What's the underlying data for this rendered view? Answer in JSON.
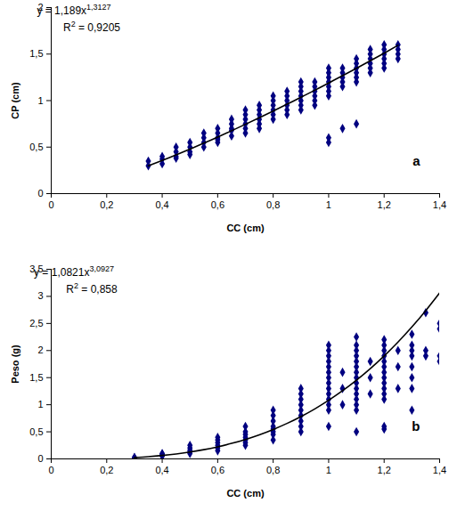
{
  "chart_data": [
    {
      "type": "scatter",
      "x_label": "CC (cm)",
      "y_label": "CP (cm)",
      "panel_label": "a",
      "annotations": [
        {
          "text": "y = 1,189x",
          "superscript": "1,3127",
          "text_after": ""
        },
        {
          "text": "R",
          "superscript": "2",
          "text_after": " = 0,9205"
        }
      ],
      "xlim": [
        0,
        1.4
      ],
      "xticks": [
        0,
        {
          "value": 0.2,
          "label": "0,2"
        },
        {
          "value": 0.4,
          "label": "0,4"
        },
        {
          "value": 0.6,
          "label": "0,6"
        },
        {
          "value": 0.8,
          "label": "0,8"
        },
        1,
        {
          "value": 1.2,
          "label": "1,2"
        },
        {
          "value": 1.4,
          "label": "1,4"
        }
      ],
      "ylim": [
        0,
        2
      ],
      "yticks": [
        0,
        {
          "value": 0.5,
          "label": "0,5"
        },
        1,
        {
          "value": 1.5,
          "label": "1,5"
        },
        2
      ],
      "grid": false,
      "series": [
        {
          "type": "scatter",
          "marker": "diamond",
          "color": "#000080",
          "points": [
            [
              0.35,
              0.35
            ],
            [
              0.35,
              0.3
            ],
            [
              0.4,
              0.37
            ],
            [
              0.4,
              0.4
            ],
            [
              0.4,
              0.32
            ],
            [
              0.45,
              0.4
            ],
            [
              0.45,
              0.45
            ],
            [
              0.45,
              0.38
            ],
            [
              0.45,
              0.5
            ],
            [
              0.5,
              0.45
            ],
            [
              0.5,
              0.5
            ],
            [
              0.5,
              0.55
            ],
            [
              0.5,
              0.42
            ],
            [
              0.55,
              0.6
            ],
            [
              0.55,
              0.55
            ],
            [
              0.55,
              0.5
            ],
            [
              0.55,
              0.65
            ],
            [
              0.6,
              0.6
            ],
            [
              0.6,
              0.65
            ],
            [
              0.6,
              0.55
            ],
            [
              0.6,
              0.7
            ],
            [
              0.6,
              0.58
            ],
            [
              0.65,
              0.7
            ],
            [
              0.65,
              0.75
            ],
            [
              0.65,
              0.62
            ],
            [
              0.65,
              0.68
            ],
            [
              0.65,
              0.8
            ],
            [
              0.7,
              0.75
            ],
            [
              0.7,
              0.8
            ],
            [
              0.7,
              0.7
            ],
            [
              0.7,
              0.65
            ],
            [
              0.7,
              0.85
            ],
            [
              0.7,
              0.9
            ],
            [
              0.75,
              0.8
            ],
            [
              0.75,
              0.85
            ],
            [
              0.75,
              0.9
            ],
            [
              0.75,
              0.75
            ],
            [
              0.75,
              0.95
            ],
            [
              0.75,
              0.7
            ],
            [
              0.8,
              0.9
            ],
            [
              0.8,
              0.85
            ],
            [
              0.8,
              0.95
            ],
            [
              0.8,
              1.0
            ],
            [
              0.8,
              0.8
            ],
            [
              0.8,
              1.05
            ],
            [
              0.85,
              0.9
            ],
            [
              0.85,
              0.95
            ],
            [
              0.85,
              1.0
            ],
            [
              0.85,
              1.05
            ],
            [
              0.85,
              0.85
            ],
            [
              0.85,
              1.1
            ],
            [
              0.9,
              1.0
            ],
            [
              0.9,
              1.05
            ],
            [
              0.9,
              1.1
            ],
            [
              0.9,
              0.95
            ],
            [
              0.9,
              1.15
            ],
            [
              0.9,
              0.9
            ],
            [
              0.9,
              1.2
            ],
            [
              0.95,
              1.05
            ],
            [
              0.95,
              1.1
            ],
            [
              0.95,
              1.15
            ],
            [
              0.95,
              1.2
            ],
            [
              0.95,
              1.0
            ],
            [
              0.95,
              0.95
            ],
            [
              1.0,
              1.1
            ],
            [
              1.0,
              1.2
            ],
            [
              1.0,
              1.25
            ],
            [
              1.0,
              1.3
            ],
            [
              1.0,
              1.35
            ],
            [
              1.0,
              1.15
            ],
            [
              1.0,
              1.05
            ],
            [
              1.0,
              0.55
            ],
            [
              1.0,
              0.6
            ],
            [
              1.05,
              1.2
            ],
            [
              1.05,
              1.25
            ],
            [
              1.05,
              1.3
            ],
            [
              1.05,
              1.35
            ],
            [
              1.05,
              1.15
            ],
            [
              1.05,
              0.7
            ],
            [
              1.1,
              1.25
            ],
            [
              1.1,
              1.3
            ],
            [
              1.1,
              1.35
            ],
            [
              1.1,
              1.4
            ],
            [
              1.1,
              1.45
            ],
            [
              1.1,
              1.2
            ],
            [
              1.1,
              0.75
            ],
            [
              1.15,
              1.35
            ],
            [
              1.15,
              1.4
            ],
            [
              1.15,
              1.45
            ],
            [
              1.15,
              1.5
            ],
            [
              1.15,
              1.55
            ],
            [
              1.15,
              1.3
            ],
            [
              1.2,
              1.4
            ],
            [
              1.2,
              1.45
            ],
            [
              1.2,
              1.5
            ],
            [
              1.2,
              1.55
            ],
            [
              1.2,
              1.6
            ],
            [
              1.2,
              1.35
            ],
            [
              1.25,
              1.45
            ],
            [
              1.25,
              1.5
            ],
            [
              1.25,
              1.55
            ],
            [
              1.25,
              1.6
            ]
          ]
        },
        {
          "type": "line",
          "line_style": "solid",
          "color": "#000000",
          "points": [
            [
              0.35,
              0.3
            ],
            [
              0.4,
              0.357
            ],
            [
              0.45,
              0.417
            ],
            [
              0.5,
              0.479
            ],
            [
              0.55,
              0.542
            ],
            [
              0.6,
              0.608
            ],
            [
              0.65,
              0.676
            ],
            [
              0.7,
              0.745
            ],
            [
              0.75,
              0.815
            ],
            [
              0.8,
              0.887
            ],
            [
              0.85,
              0.961
            ],
            [
              0.9,
              1.036
            ],
            [
              0.95,
              1.111
            ],
            [
              1.0,
              1.189
            ],
            [
              1.05,
              1.268
            ],
            [
              1.1,
              1.347
            ],
            [
              1.15,
              1.428
            ],
            [
              1.2,
              1.51
            ],
            [
              1.25,
              1.594
            ]
          ]
        }
      ]
    },
    {
      "type": "scatter",
      "x_label": "CC (cm)",
      "y_label": "Peso (g)",
      "panel_label": "b",
      "annotations": [
        {
          "text": "y = 1,0821x",
          "superscript": "3,0927",
          "text_after": ""
        },
        {
          "text": "R",
          "superscript": "2",
          "text_after": " = 0,858"
        }
      ],
      "xlim": [
        0,
        1.4
      ],
      "xticks": [
        0,
        {
          "value": 0.2,
          "label": "0,2"
        },
        {
          "value": 0.4,
          "label": "0,4"
        },
        {
          "value": 0.6,
          "label": "0,6"
        },
        {
          "value": 0.8,
          "label": "0,8"
        },
        1,
        {
          "value": 1.2,
          "label": "1,2"
        },
        {
          "value": 1.4,
          "label": "1,4"
        }
      ],
      "ylim": [
        0,
        3.5
      ],
      "yticks": [
        0,
        {
          "value": 0.5,
          "label": "0,5"
        },
        1,
        {
          "value": 1.5,
          "label": "1,5"
        },
        2,
        {
          "value": 2.5,
          "label": "2,5"
        },
        3,
        {
          "value": 3.5,
          "label": "3,5"
        }
      ],
      "grid": false,
      "series": [
        {
          "type": "scatter",
          "marker": "diamond",
          "color": "#000080",
          "points": [
            [
              0.3,
              0.02
            ],
            [
              0.3,
              0.03
            ],
            [
              0.4,
              0.05
            ],
            [
              0.4,
              0.07
            ],
            [
              0.4,
              0.09
            ],
            [
              0.4,
              0.1
            ],
            [
              0.5,
              0.1
            ],
            [
              0.5,
              0.13
            ],
            [
              0.5,
              0.16
            ],
            [
              0.5,
              0.2
            ],
            [
              0.5,
              0.25
            ],
            [
              0.6,
              0.15
            ],
            [
              0.6,
              0.2
            ],
            [
              0.6,
              0.25
            ],
            [
              0.6,
              0.3
            ],
            [
              0.6,
              0.35
            ],
            [
              0.6,
              0.4
            ],
            [
              0.7,
              0.25
            ],
            [
              0.7,
              0.3
            ],
            [
              0.7,
              0.35
            ],
            [
              0.7,
              0.4
            ],
            [
              0.7,
              0.45
            ],
            [
              0.7,
              0.5
            ],
            [
              0.7,
              0.6
            ],
            [
              0.8,
              0.35
            ],
            [
              0.8,
              0.45
            ],
            [
              0.8,
              0.5
            ],
            [
              0.8,
              0.55
            ],
            [
              0.8,
              0.6
            ],
            [
              0.8,
              0.7
            ],
            [
              0.8,
              0.8
            ],
            [
              0.8,
              0.9
            ],
            [
              0.9,
              0.5
            ],
            [
              0.9,
              0.6
            ],
            [
              0.9,
              0.7
            ],
            [
              0.9,
              0.8
            ],
            [
              0.9,
              0.9
            ],
            [
              0.9,
              1.0
            ],
            [
              0.9,
              1.1
            ],
            [
              0.9,
              1.2
            ],
            [
              0.9,
              1.3
            ],
            [
              1.0,
              0.6
            ],
            [
              1.0,
              0.9
            ],
            [
              1.0,
              1.0
            ],
            [
              1.0,
              1.1
            ],
            [
              1.0,
              1.2
            ],
            [
              1.0,
              1.3
            ],
            [
              1.0,
              1.4
            ],
            [
              1.0,
              1.5
            ],
            [
              1.0,
              1.6
            ],
            [
              1.0,
              1.7
            ],
            [
              1.0,
              1.8
            ],
            [
              1.0,
              1.9
            ],
            [
              1.0,
              2.0
            ],
            [
              1.0,
              2.1
            ],
            [
              1.05,
              1.0
            ],
            [
              1.05,
              1.3
            ],
            [
              1.05,
              1.6
            ],
            [
              1.1,
              0.5
            ],
            [
              1.1,
              0.9
            ],
            [
              1.1,
              1.0
            ],
            [
              1.1,
              1.1
            ],
            [
              1.1,
              1.2
            ],
            [
              1.1,
              1.3
            ],
            [
              1.1,
              1.4
            ],
            [
              1.1,
              1.5
            ],
            [
              1.1,
              1.6
            ],
            [
              1.1,
              1.7
            ],
            [
              1.1,
              1.8
            ],
            [
              1.1,
              1.9
            ],
            [
              1.1,
              2.0
            ],
            [
              1.1,
              2.1
            ],
            [
              1.1,
              2.25
            ],
            [
              1.15,
              1.2
            ],
            [
              1.15,
              1.5
            ],
            [
              1.15,
              1.8
            ],
            [
              1.2,
              0.55
            ],
            [
              1.2,
              0.6
            ],
            [
              1.2,
              1.1
            ],
            [
              1.2,
              1.2
            ],
            [
              1.2,
              1.3
            ],
            [
              1.2,
              1.4
            ],
            [
              1.2,
              1.5
            ],
            [
              1.2,
              1.6
            ],
            [
              1.2,
              1.7
            ],
            [
              1.2,
              1.8
            ],
            [
              1.2,
              1.9
            ],
            [
              1.2,
              2.0
            ],
            [
              1.2,
              2.1
            ],
            [
              1.2,
              2.2
            ],
            [
              1.25,
              1.3
            ],
            [
              1.25,
              1.7
            ],
            [
              1.25,
              2.0
            ],
            [
              1.3,
              0.9
            ],
            [
              1.3,
              1.3
            ],
            [
              1.3,
              1.5
            ],
            [
              1.3,
              1.7
            ],
            [
              1.3,
              1.9
            ],
            [
              1.3,
              2.0
            ],
            [
              1.3,
              2.1
            ],
            [
              1.3,
              2.3
            ],
            [
              1.35,
              1.9
            ],
            [
              1.35,
              2.0
            ],
            [
              1.35,
              2.7
            ],
            [
              1.4,
              1.8
            ],
            [
              1.4,
              1.9
            ],
            [
              1.4,
              2.4
            ],
            [
              1.4,
              2.5
            ]
          ]
        },
        {
          "type": "line",
          "line_style": "solid",
          "color": "#000000",
          "points": [
            [
              0.3,
              0.026
            ],
            [
              0.35,
              0.042
            ],
            [
              0.4,
              0.064
            ],
            [
              0.45,
              0.091
            ],
            [
              0.5,
              0.127
            ],
            [
              0.55,
              0.17
            ],
            [
              0.6,
              0.223
            ],
            [
              0.65,
              0.286
            ],
            [
              0.7,
              0.359
            ],
            [
              0.75,
              0.444
            ],
            [
              0.8,
              0.543
            ],
            [
              0.85,
              0.655
            ],
            [
              0.9,
              0.781
            ],
            [
              0.95,
              0.923
            ],
            [
              1.0,
              1.082
            ],
            [
              1.05,
              1.258
            ],
            [
              1.1,
              1.453
            ],
            [
              1.15,
              1.667
            ],
            [
              1.2,
              1.901
            ],
            [
              1.25,
              2.157
            ],
            [
              1.3,
              2.436
            ],
            [
              1.35,
              2.737
            ],
            [
              1.4,
              3.063
            ]
          ]
        }
      ]
    }
  ]
}
